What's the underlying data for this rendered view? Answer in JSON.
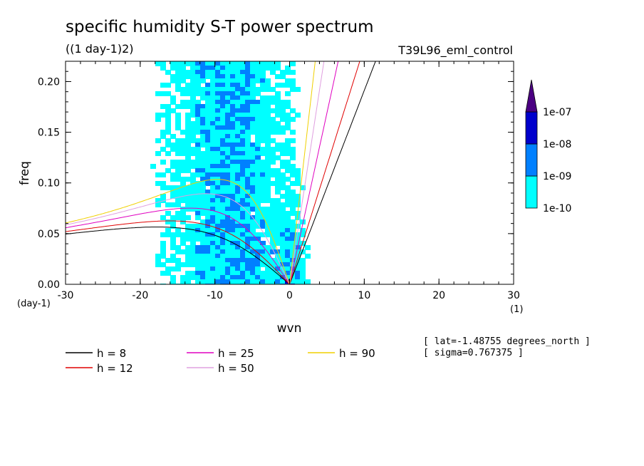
{
  "chart_data": {
    "type": "heatmap",
    "title": "specific humidity S-T power spectrum",
    "subtitle": "((1 day-1)2)",
    "experiment": "T39L96_eml_control",
    "xlabel": "wvn",
    "ylabel": "freq",
    "x_units": "(1)",
    "y_units": "(day-1)",
    "xlim": [
      -30,
      30
    ],
    "ylim": [
      0,
      0.22
    ],
    "x_ticks": [
      -30,
      -20,
      -10,
      0,
      10,
      20,
      30
    ],
    "x_tick_labels": [
      "-30",
      "-20",
      "-10",
      "0",
      "10",
      "20",
      "30"
    ],
    "y_ticks": [
      0.0,
      0.05,
      0.1,
      0.15,
      0.2
    ],
    "y_tick_labels": [
      "0.00",
      "0.05",
      "0.10",
      "0.15",
      "0.20"
    ],
    "colorbar": {
      "levels": [
        "1e-10",
        "1e-09",
        "1e-08",
        "1e-07"
      ],
      "colors": [
        "#00ffff",
        "#0080ff",
        "#0000cc",
        "#4b0082"
      ]
    },
    "dispersion_curves": [
      {
        "label": "h = 8",
        "h": 8,
        "color": "#000000"
      },
      {
        "label": "h = 12",
        "h": 12,
        "color": "#e00000"
      },
      {
        "label": "h = 25",
        "h": 25,
        "color": "#e000c0"
      },
      {
        "label": "h = 50",
        "h": 50,
        "color": "#e0a0e0"
      },
      {
        "label": "h = 90",
        "h": 90,
        "color": "#f0d000"
      }
    ],
    "annotations": [
      "[ lat=-1.48755 degrees_north ]",
      "[ sigma=0.767375 ]"
    ]
  }
}
